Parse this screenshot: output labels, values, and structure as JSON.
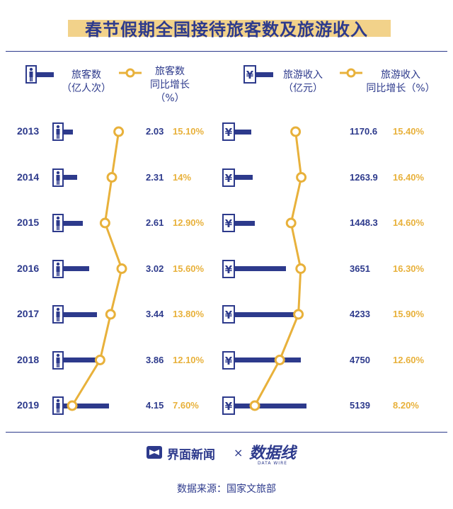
{
  "title": "春节假期全国接待旅客数及旅游收入",
  "legend": {
    "tourists_label": "旅客数\n（亿人次）",
    "tourists_growth_label": "旅客数\n同比增长\n（%）",
    "revenue_label": "旅游收入\n（亿元）",
    "revenue_growth_label": "旅游收入\n同比增长（%）"
  },
  "footer": {
    "jiemian_logo": "界面新闻",
    "times": "×",
    "shuju_logo": "数据线",
    "shuju_sub": "DATA WIRE",
    "source": "数据来源：国家文旅部"
  },
  "chart_data": [
    {
      "type": "bar",
      "name": "旅客数",
      "unit": "亿人次",
      "categories": [
        "2013",
        "2014",
        "2015",
        "2016",
        "2017",
        "2018",
        "2019"
      ],
      "values": [
        2.03,
        2.31,
        2.61,
        3.02,
        3.44,
        3.86,
        4.15
      ],
      "labels": [
        "2.03",
        "2.31",
        "2.61",
        "3.02",
        "3.44",
        "3.86",
        "4.15"
      ]
    },
    {
      "type": "line",
      "name": "旅客数同比增长",
      "unit": "%",
      "categories": [
        "2013",
        "2014",
        "2015",
        "2016",
        "2017",
        "2018",
        "2019"
      ],
      "values": [
        15.1,
        14,
        12.9,
        15.6,
        13.8,
        12.1,
        7.6
      ],
      "labels": [
        "15.10%",
        "14%",
        "12.90%",
        "15.60%",
        "13.80%",
        "12.10%",
        "7.60%"
      ]
    },
    {
      "type": "bar",
      "name": "旅游收入",
      "unit": "亿元",
      "categories": [
        "2013",
        "2014",
        "2015",
        "2016",
        "2017",
        "2018",
        "2019"
      ],
      "values": [
        1170.6,
        1263.9,
        1448.3,
        3651,
        4233,
        4750,
        5139
      ],
      "labels": [
        "1170.6",
        "1263.9",
        "1448.3",
        "3651",
        "4233",
        "4750",
        "5139"
      ]
    },
    {
      "type": "line",
      "name": "旅游收入同比增长",
      "unit": "%",
      "categories": [
        "2013",
        "2014",
        "2015",
        "2016",
        "2017",
        "2018",
        "2019"
      ],
      "values": [
        15.4,
        16.4,
        14.6,
        16.3,
        15.9,
        12.6,
        8.2
      ],
      "labels": [
        "15.40%",
        "16.40%",
        "14.60%",
        "16.30%",
        "15.90%",
        "12.60%",
        "8.20%"
      ]
    }
  ],
  "colors": {
    "navy": "#2d3a8c",
    "gold": "#e8b13b",
    "highlight": "#f2d28a"
  },
  "icons": {
    "person": "person-icon",
    "yuan": "yuan-icon"
  }
}
